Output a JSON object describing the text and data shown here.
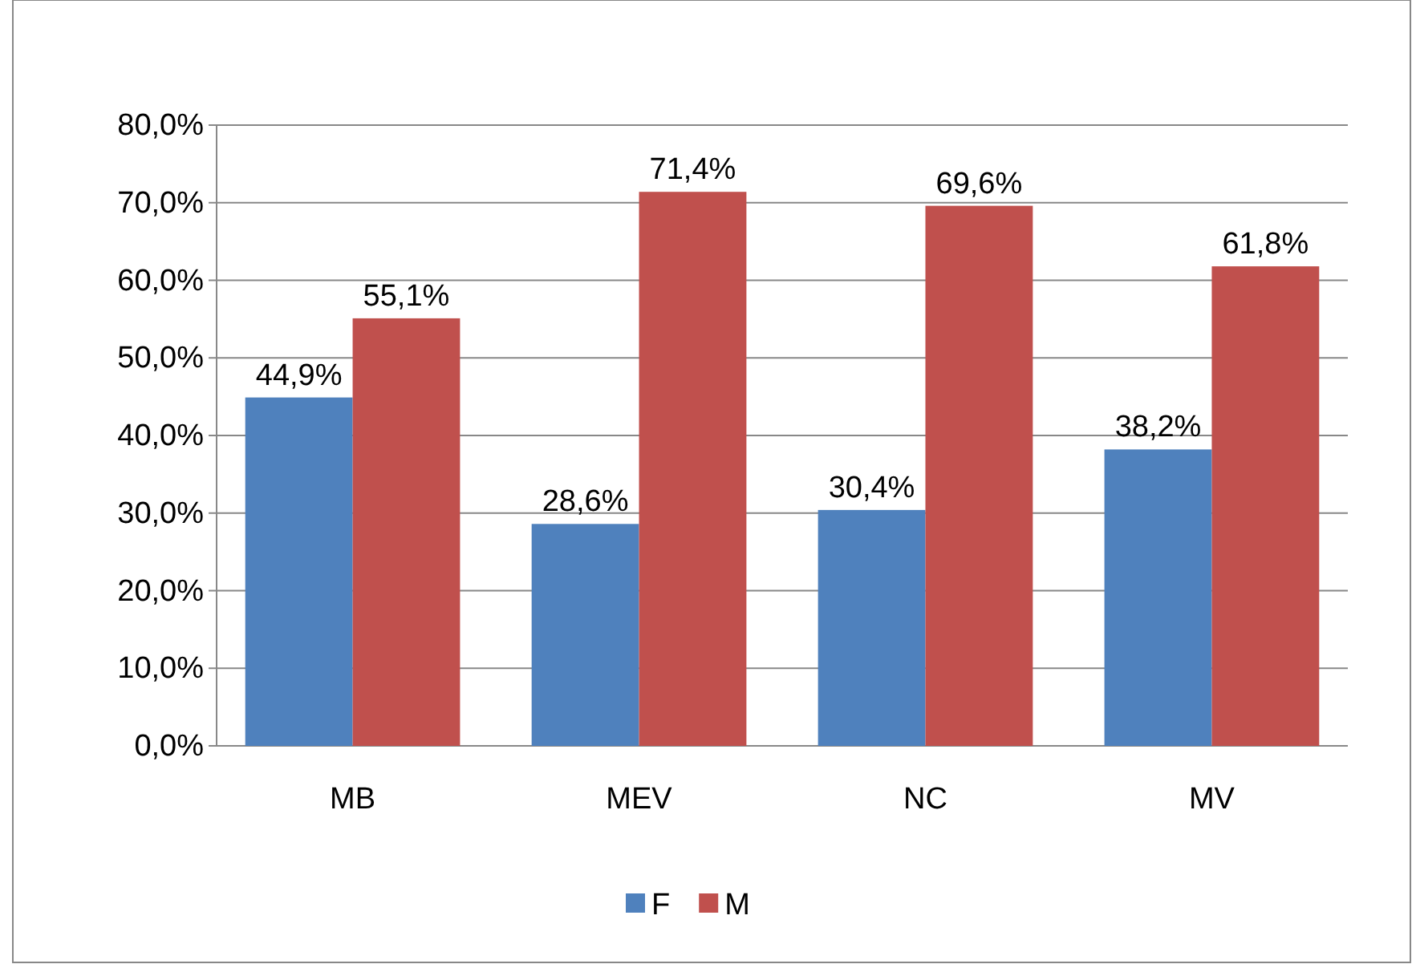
{
  "chart_data": {
    "type": "bar",
    "categories": [
      "MB",
      "MEV",
      "NC",
      "MV"
    ],
    "series": [
      {
        "name": "F",
        "color": "#4f81bd",
        "values": [
          44.9,
          28.6,
          30.4,
          38.2
        ],
        "value_labels": [
          "44,9%",
          "28,6%",
          "30,4%",
          "38,2%"
        ]
      },
      {
        "name": "M",
        "color": "#c0504d",
        "values": [
          55.1,
          71.4,
          69.6,
          61.8
        ],
        "value_labels": [
          "55,1%",
          "71,4%",
          "69,6%",
          "61,8%"
        ]
      }
    ],
    "ylim": [
      0,
      80
    ],
    "yticks": [
      {
        "value": 0,
        "label": "0,0%"
      },
      {
        "value": 10,
        "label": "10,0%"
      },
      {
        "value": 20,
        "label": "20,0%"
      },
      {
        "value": 30,
        "label": "30,0%"
      },
      {
        "value": 40,
        "label": "40,0%"
      },
      {
        "value": 50,
        "label": "50,0%"
      },
      {
        "value": 60,
        "label": "60,0%"
      },
      {
        "value": 70,
        "label": "70,0%"
      },
      {
        "value": 80,
        "label": "80,0%"
      }
    ],
    "grid": "y",
    "legend": "bottom"
  }
}
